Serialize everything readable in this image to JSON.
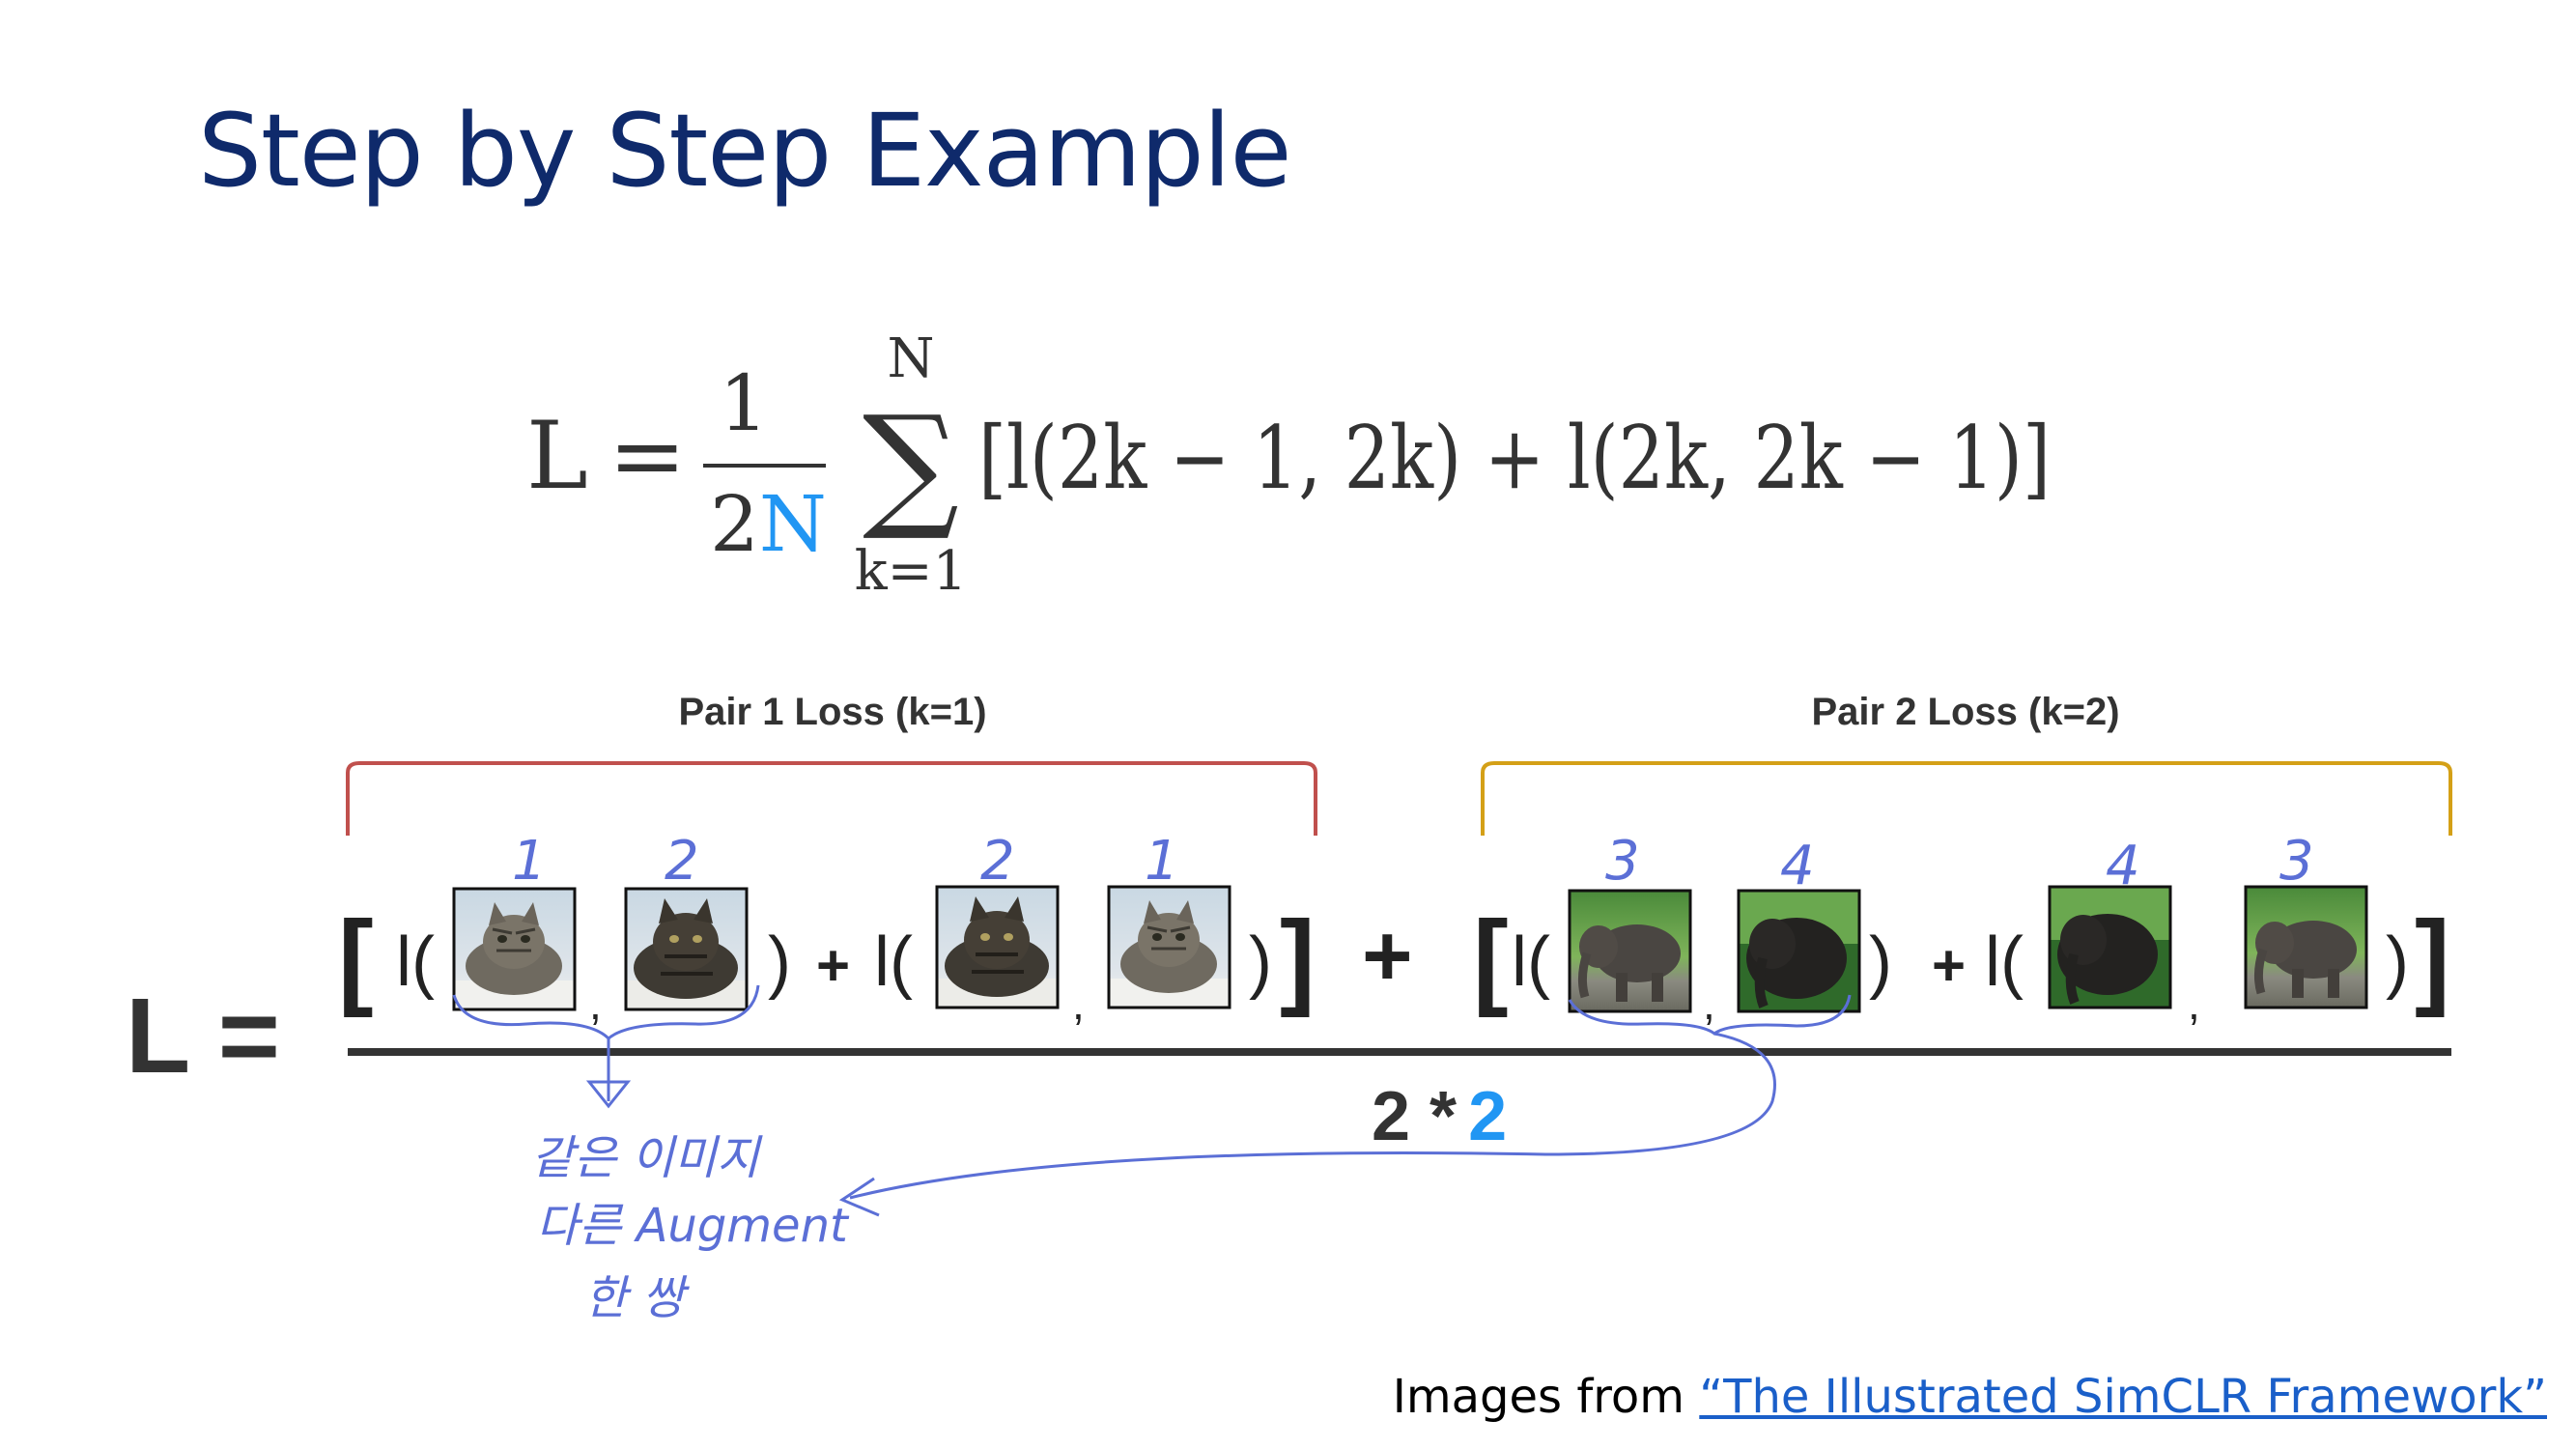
{
  "title": "Step by Step Example",
  "formula": {
    "lhs": "L",
    "equals": "=",
    "frac_num": "1",
    "frac_den_prefix": "2",
    "frac_den_var": "N",
    "sum_upper": "N",
    "sum_lower": "k=1",
    "sum_symbol": "∑",
    "body": "[l(2k − 1, 2k) + l(2k, 2k − 1)]"
  },
  "pairs": [
    {
      "label": "Pair 1 Loss (k=1)",
      "color": "#c0504d"
    },
    {
      "label": "Pair 2 Loss (k=2)",
      "color": "#d4a017"
    }
  ],
  "numbers": [
    "1",
    "2",
    "2",
    "1",
    "3",
    "4",
    "4",
    "3"
  ],
  "loss_lhs": "L =",
  "plus": "+",
  "denominator": {
    "left": "2 *",
    "right": "2",
    "right_color": "#2196f3"
  },
  "handwriting": [
    "같은 이미지",
    "다른 Augment",
    "한 쌍"
  ],
  "credit": {
    "prefix": "Images from ",
    "link": "“The Illustrated SimCLR Framework”"
  }
}
